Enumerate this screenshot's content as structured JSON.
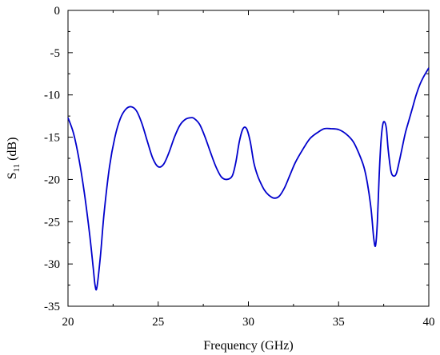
{
  "chart_data": {
    "type": "line",
    "xlabel": "Frequency (GHz)",
    "ylabel_main": "S",
    "ylabel_sub": "11",
    "ylabel_unit": " (dB)",
    "xlim": [
      20,
      40
    ],
    "ylim": [
      -35,
      0
    ],
    "xticks": [
      20,
      25,
      30,
      35,
      40
    ],
    "xtick_labels": [
      "20",
      "25",
      "30",
      "35",
      "40"
    ],
    "yticks": [
      0,
      -5,
      -10,
      -15,
      -20,
      -25,
      -30,
      -35
    ],
    "ytick_labels": [
      "0",
      "-5",
      "-10",
      "-15",
      "-20",
      "-25",
      "-30",
      "-35"
    ],
    "grid": false,
    "line_color": "#0000cc",
    "series": [
      {
        "x": [
          20.0,
          20.3,
          20.6,
          20.9,
          21.2,
          21.4,
          21.5,
          21.6,
          21.8,
          22.0,
          22.3,
          22.6,
          22.9,
          23.2,
          23.5,
          23.8,
          24.1,
          24.4,
          24.7,
          25.0,
          25.3,
          25.6,
          25.9,
          26.2,
          26.5,
          26.8,
          27.0,
          27.3,
          27.6,
          27.9,
          28.2,
          28.5,
          28.8,
          29.1,
          29.3,
          29.5,
          29.7,
          29.9,
          30.1,
          30.3,
          30.5,
          30.7,
          30.9,
          31.1,
          31.4,
          31.7,
          32.0,
          32.3,
          32.6,
          33.0,
          33.4,
          33.8,
          34.2,
          34.6,
          35.0,
          35.4,
          35.8,
          36.1,
          36.4,
          36.6,
          36.8,
          36.95,
          37.05,
          37.15,
          37.25,
          37.35,
          37.45,
          37.55,
          37.65,
          37.75,
          37.9,
          38.05,
          38.2,
          38.35,
          38.5,
          38.7,
          38.9,
          39.1,
          39.3,
          39.5,
          39.7,
          40.0
        ],
        "y": [
          -12.7,
          -14.5,
          -17.5,
          -21.5,
          -26.5,
          -30.5,
          -32.5,
          -32.8,
          -29.0,
          -24.0,
          -18.5,
          -15.0,
          -12.8,
          -11.7,
          -11.4,
          -11.9,
          -13.4,
          -15.5,
          -17.5,
          -18.5,
          -18.2,
          -16.8,
          -15.0,
          -13.6,
          -12.9,
          -12.7,
          -12.8,
          -13.5,
          -15.0,
          -16.8,
          -18.5,
          -19.7,
          -20.0,
          -19.6,
          -18.0,
          -15.5,
          -14.0,
          -14.0,
          -15.5,
          -18.0,
          -19.5,
          -20.5,
          -21.3,
          -21.8,
          -22.2,
          -22.0,
          -21.0,
          -19.5,
          -18.0,
          -16.5,
          -15.2,
          -14.5,
          -14.0,
          -14.0,
          -14.1,
          -14.6,
          -15.5,
          -16.8,
          -18.5,
          -20.5,
          -23.5,
          -27.0,
          -27.8,
          -25.0,
          -19.5,
          -15.5,
          -13.5,
          -13.2,
          -14.0,
          -16.5,
          -19.0,
          -19.6,
          -19.3,
          -18.0,
          -16.5,
          -14.5,
          -13.0,
          -11.5,
          -10.0,
          -8.8,
          -7.9,
          -6.8
        ]
      }
    ]
  }
}
